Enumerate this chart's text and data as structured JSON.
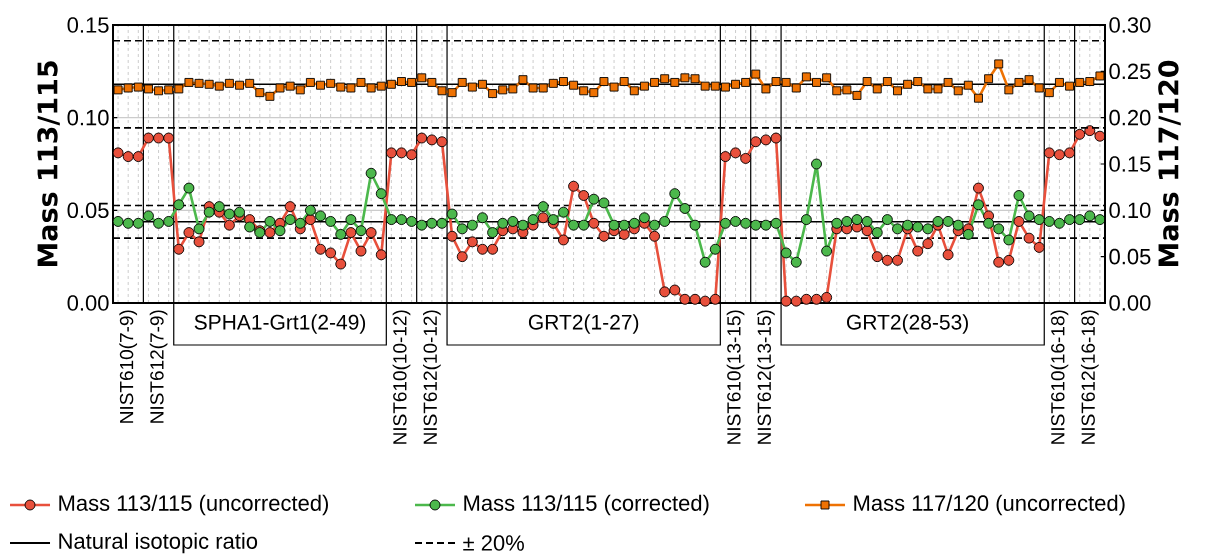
{
  "chart_data": {
    "type": "line",
    "ylabel": "Mass 113/115",
    "y2label": "Mass 117/120",
    "categories": [
      null,
      "NIST610(7-9)",
      null,
      null,
      "NIST612(7-9)",
      null,
      null,
      null,
      null,
      null,
      null,
      null,
      null,
      null,
      null,
      null,
      "SPHA1-Grt1(2-49)",
      null,
      null,
      null,
      null,
      null,
      null,
      null,
      null,
      null,
      null,
      null,
      "NIST610(10-12)",
      null,
      null,
      "NIST612(10-12)",
      null,
      null,
      null,
      null,
      null,
      null,
      null,
      null,
      null,
      null,
      null,
      null,
      null,
      null,
      "GRT2(1-27)",
      null,
      null,
      null,
      null,
      null,
      null,
      null,
      null,
      null,
      null,
      null,
      null,
      null,
      null,
      "NIST610(13-15)",
      null,
      null,
      "NIST612(13-15)",
      null,
      null,
      null,
      null,
      null,
      null,
      null,
      null,
      null,
      null,
      null,
      null,
      null,
      "GRT2(28-53)",
      null,
      null,
      null,
      null,
      null,
      null,
      null,
      null,
      null,
      null,
      null,
      null,
      null,
      null,
      "NIST610(16-18)",
      null,
      null,
      "NIST612(16-18)",
      null
    ],
    "series": [
      {
        "name": "Mass 113/115 (uncorrected)",
        "color": "#e8503c",
        "marker": "circle",
        "values": [
          0.081,
          0.079,
          0.079,
          0.089,
          0.089,
          0.089,
          0.029,
          0.038,
          0.033,
          0.052,
          0.049,
          0.042,
          0.047,
          0.045,
          0.039,
          0.038,
          0.043,
          0.052,
          0.04,
          0.045,
          0.029,
          0.027,
          0.021,
          0.038,
          0.028,
          0.038,
          0.026,
          0.081,
          0.081,
          0.08,
          0.089,
          0.088,
          0.087,
          0.036,
          0.025,
          0.033,
          0.029,
          0.029,
          0.039,
          0.04,
          0.038,
          0.042,
          0.046,
          0.043,
          0.034,
          0.063,
          0.058,
          0.043,
          0.036,
          0.039,
          0.037,
          0.04,
          0.043,
          0.036,
          0.006,
          0.007,
          0.002,
          0.002,
          0.001,
          0.002,
          0.079,
          0.081,
          0.078,
          0.087,
          0.088,
          0.089,
          0.001,
          0.001,
          0.002,
          0.002,
          0.003,
          0.04,
          0.04,
          0.041,
          0.039,
          0.025,
          0.023,
          0.023,
          0.04,
          0.028,
          0.032,
          0.042,
          0.026,
          0.039,
          0.04,
          0.062,
          0.047,
          0.022,
          0.023,
          0.044,
          0.035,
          0.03,
          0.081,
          0.08,
          0.081,
          0.091,
          0.093,
          0.09
        ]
      },
      {
        "name": "Mass 113/115 (corrected)",
        "color": "#4cb84c",
        "marker": "circle",
        "values": [
          0.044,
          0.043,
          0.043,
          0.047,
          0.043,
          0.044,
          0.053,
          0.062,
          0.04,
          0.049,
          0.052,
          0.048,
          0.049,
          0.041,
          0.038,
          0.044,
          0.039,
          0.045,
          0.043,
          0.05,
          0.047,
          0.044,
          0.037,
          0.045,
          0.039,
          0.07,
          0.059,
          0.045,
          0.045,
          0.044,
          0.042,
          0.043,
          0.043,
          0.048,
          0.04,
          0.042,
          0.046,
          0.038,
          0.043,
          0.044,
          0.042,
          0.045,
          0.052,
          0.045,
          0.049,
          0.042,
          0.042,
          0.056,
          0.054,
          0.042,
          0.042,
          0.043,
          0.046,
          0.042,
          0.044,
          0.059,
          0.051,
          0.042,
          0.022,
          0.029,
          0.043,
          0.044,
          0.043,
          0.042,
          0.042,
          0.043,
          0.027,
          0.022,
          0.045,
          0.075,
          0.028,
          0.043,
          0.044,
          0.045,
          0.044,
          0.038,
          0.045,
          0.04,
          0.042,
          0.041,
          0.04,
          0.044,
          0.044,
          0.042,
          0.037,
          0.053,
          0.043,
          0.04,
          0.034,
          0.058,
          0.047,
          0.045,
          0.044,
          0.043,
          0.045,
          0.045,
          0.047,
          0.045
        ]
      },
      {
        "name": "Mass 117/120 (uncorrected)",
        "color": "#ee7203",
        "marker": "square",
        "axis": "y2",
        "values": [
          0.23,
          0.232,
          0.233,
          0.231,
          0.229,
          0.23,
          0.231,
          0.238,
          0.237,
          0.236,
          0.234,
          0.237,
          0.235,
          0.237,
          0.227,
          0.223,
          0.232,
          0.234,
          0.23,
          0.238,
          0.235,
          0.237,
          0.233,
          0.232,
          0.238,
          0.232,
          0.234,
          0.236,
          0.239,
          0.238,
          0.243,
          0.238,
          0.229,
          0.227,
          0.238,
          0.233,
          0.236,
          0.226,
          0.23,
          0.231,
          0.241,
          0.232,
          0.232,
          0.237,
          0.239,
          0.235,
          0.229,
          0.227,
          0.239,
          0.233,
          0.239,
          0.229,
          0.234,
          0.238,
          0.242,
          0.238,
          0.243,
          0.242,
          0.234,
          0.234,
          0.233,
          0.236,
          0.238,
          0.247,
          0.231,
          0.239,
          0.238,
          0.232,
          0.244,
          0.238,
          0.243,
          0.229,
          0.23,
          0.224,
          0.239,
          0.231,
          0.239,
          0.229,
          0.236,
          0.239,
          0.231,
          0.231,
          0.238,
          0.229,
          0.235,
          0.221,
          0.242,
          0.258,
          0.23,
          0.238,
          0.241,
          0.232,
          0.227,
          0.238,
          0.234,
          0.238,
          0.239,
          0.245
        ]
      }
    ],
    "ylim": [
      0,
      0.15
    ],
    "yticks": [
      {
        "value": 0,
        "label": "0.00"
      },
      {
        "value": 0.05,
        "label": "0.05"
      },
      {
        "value": 0.1,
        "label": "0.10"
      },
      {
        "value": 0.15,
        "label": "0.15"
      }
    ],
    "y2lim": [
      0,
      0.3
    ],
    "y2ticks": [
      {
        "value": 0,
        "label": "0.00"
      },
      {
        "value": 0.05,
        "label": "0.05"
      },
      {
        "value": 0.1,
        "label": "0.10"
      },
      {
        "value": 0.15,
        "label": "0.15"
      },
      {
        "value": 0.2,
        "label": "0.20"
      },
      {
        "value": 0.25,
        "label": "0.25"
      },
      {
        "value": 0.3,
        "label": "0.30"
      }
    ],
    "ref_lines": [
      {
        "axis": "y",
        "value": 0.0438,
        "label": "Natural isotopic ratio",
        "color": "#000000",
        "line_style": "solid"
      },
      {
        "axis": "y",
        "value": 0.0526,
        "color": "#000000",
        "line_style": "dashed"
      },
      {
        "axis": "y",
        "value": 0.035,
        "color": "#000000",
        "line_style": "dashed"
      },
      {
        "axis": "y2",
        "value": 0.236,
        "color": "#000000",
        "line_style": "solid"
      },
      {
        "axis": "y2",
        "value": 0.283,
        "color": "#000000",
        "line_style": "dashed"
      },
      {
        "axis": "y2",
        "value": 0.189,
        "color": "#000000",
        "line_style": "dashed"
      }
    ],
    "annotations": [
      "± 20%"
    ],
    "grid": true,
    "legend": "bottom",
    "line_style": "solid"
  }
}
